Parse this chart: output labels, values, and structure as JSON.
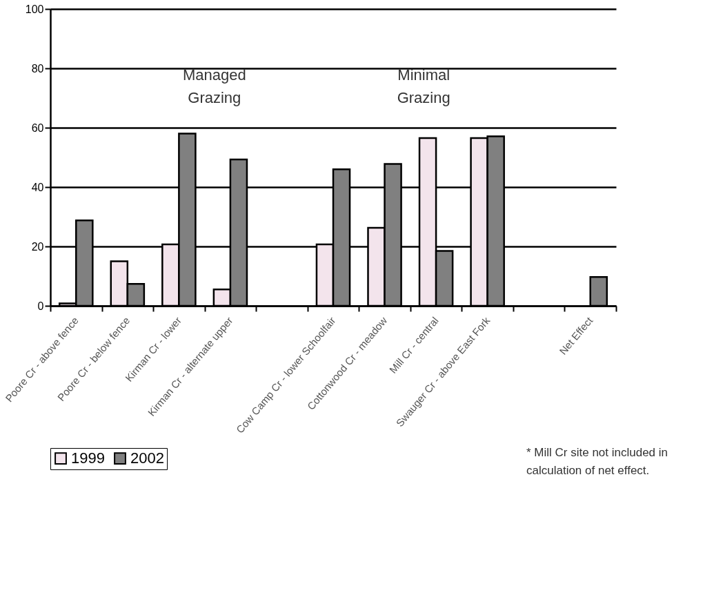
{
  "chart_data": {
    "type": "bar",
    "categories": [
      "Poore Cr - above fence",
      "Poore Cr - below fence",
      "Kirman Cr - lower",
      "Kirman Cr - alternate upper",
      null,
      "Cow Camp Cr - lower Schoolfair",
      "Cottonwood Cr - meadow",
      "Mill Cr - central",
      "Swauger Cr - above East Fork",
      null,
      "Net Effect"
    ],
    "series": [
      {
        "name": "1999",
        "color": "#f3e4ec",
        "values": [
          0.8,
          15,
          20.7,
          5.5,
          null,
          20.7,
          26.3,
          56.5,
          56.5,
          null,
          null
        ]
      },
      {
        "name": "2002",
        "color": "#808080",
        "values": [
          28.8,
          7.4,
          58,
          49.3,
          null,
          46,
          47.8,
          18.5,
          57.1,
          null,
          9.7
        ]
      }
    ],
    "ylim": [
      0,
      100
    ],
    "yticks": [
      0,
      20,
      40,
      60,
      80,
      100
    ],
    "grid": "y",
    "legend": "bottom",
    "annotations": [
      "Managed\nGrazing",
      "Minimal\nGrazing",
      "* Mill Cr site not included in\ncalculation of net effect."
    ]
  }
}
